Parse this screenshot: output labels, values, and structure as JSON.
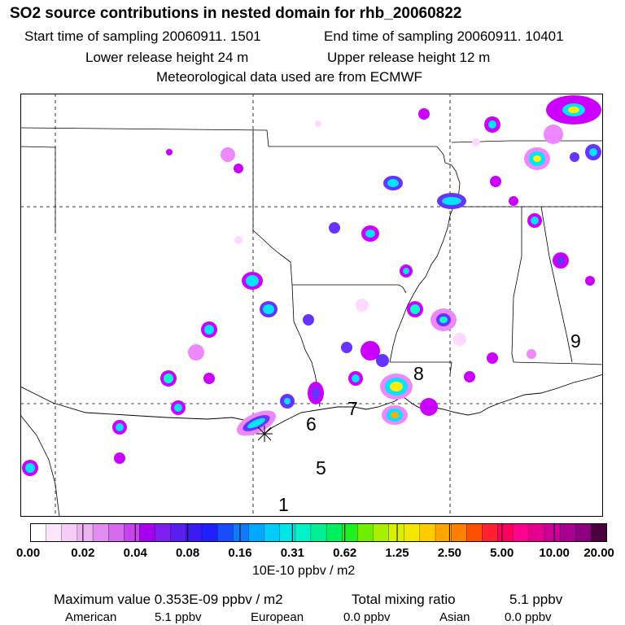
{
  "header": {
    "title": "SO2 source contributions in nested domain for rhb_20060822",
    "start_label": "Start time of sampling 20060911.  1501",
    "end_label": "End time of sampling 20060911. 10401",
    "lower_label": "Lower release height   24 m",
    "upper_label": "Upper release height   12 m",
    "met_label": "Meteorological data used are from ECMWF"
  },
  "map": {
    "region_labels": [
      "1",
      "5",
      "6",
      "7",
      "8",
      "9"
    ],
    "plume_colors": [
      "#ffd9ff",
      "#ee88ff",
      "#cc00ff",
      "#6633ff",
      "#00e5ff",
      "#00ffcc",
      "#ffee00",
      "#ffaa00"
    ]
  },
  "colorbar": {
    "colors": [
      "#ffffff",
      "#fbe6fb",
      "#f4ccf6",
      "#edb2f1",
      "#e18ef0",
      "#d66bf0",
      "#c544f0",
      "#a500f0",
      "#7f20f0",
      "#5a1ff0",
      "#3a1af5",
      "#2020ff",
      "#1a4cff",
      "#0c7bff",
      "#00a8ff",
      "#00ccff",
      "#00e5e5",
      "#00f2c8",
      "#00f096",
      "#00f060",
      "#20f020",
      "#70f000",
      "#a8f000",
      "#d8f000",
      "#f5e600",
      "#ffcc00",
      "#ffa600",
      "#ff7f00",
      "#ff4f00",
      "#ff2030",
      "#ff0060",
      "#ff0090",
      "#e60090",
      "#cc0099",
      "#a80090",
      "#8c0080",
      "#4c0040"
    ],
    "ticks": [
      "0.00",
      "0.02",
      "0.04",
      "0.08",
      "0.16",
      "0.31",
      "0.62",
      "1.25",
      "2.50",
      "5.00",
      "10.00",
      "20.00"
    ],
    "units": "10E-10 ppbv / m2"
  },
  "footer": {
    "max_value": "Maximum value  0.353E-09 ppbv / m2",
    "total_mixing": "Total mixing ratio",
    "total_value": "5.1 ppbv",
    "american_label": "American",
    "american_value": "5.1 ppbv",
    "european_label": "European",
    "european_value": "0.0 ppbv",
    "asian_label": "Asian",
    "asian_value": "0.0 ppbv"
  }
}
